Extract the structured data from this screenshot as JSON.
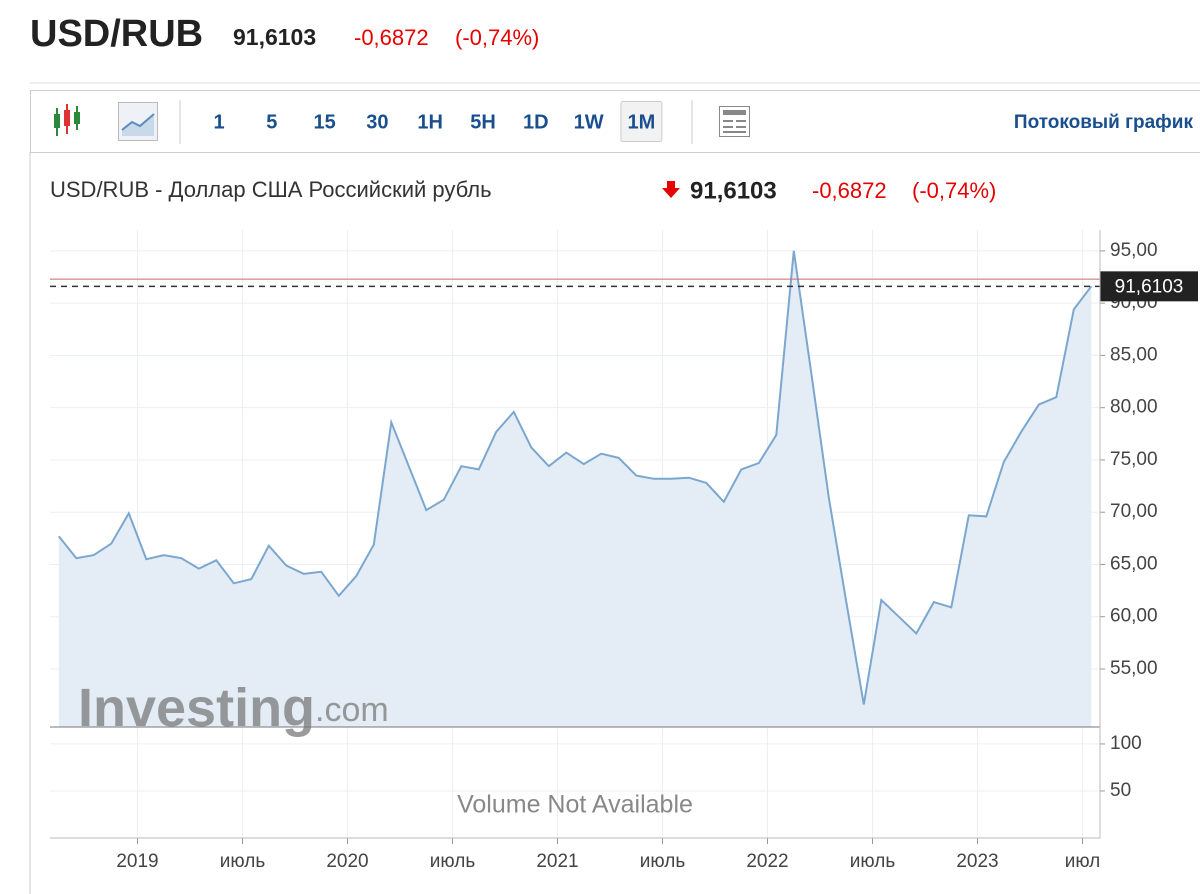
{
  "header": {
    "symbol": "USD/RUB",
    "price": "91,6103",
    "change": "-0,6872",
    "change_pct": "(-0,74%)"
  },
  "toolbar": {
    "intervals": [
      "1",
      "5",
      "15",
      "30",
      "1H",
      "5H",
      "1D",
      "1W",
      "1M"
    ],
    "selected": "1M",
    "streaming_link": "Потоковый график"
  },
  "watermark": {
    "brand": "Investing",
    "suffix": ".com"
  },
  "chart_data": {
    "type": "area",
    "title": "USD/RUB - Доллар США Российский рубль",
    "x": [
      "2018-08",
      "2018-09",
      "2018-10",
      "2018-11",
      "2018-12",
      "2019-01",
      "2019-02",
      "2019-03",
      "2019-04",
      "2019-05",
      "2019-06",
      "2019-07",
      "2019-08",
      "2019-09",
      "2019-10",
      "2019-11",
      "2019-12",
      "2020-01",
      "2020-02",
      "2020-03",
      "2020-04",
      "2020-05",
      "2020-06",
      "2020-07",
      "2020-08",
      "2020-09",
      "2020-10",
      "2020-11",
      "2020-12",
      "2021-01",
      "2021-02",
      "2021-03",
      "2021-04",
      "2021-05",
      "2021-06",
      "2021-07",
      "2021-08",
      "2021-09",
      "2021-10",
      "2021-11",
      "2021-12",
      "2022-01",
      "2022-02",
      "2022-03",
      "2022-04",
      "2022-05",
      "2022-06",
      "2022-07",
      "2022-08",
      "2022-09",
      "2022-10",
      "2022-11",
      "2022-12",
      "2023-01",
      "2023-02",
      "2023-03",
      "2023-04",
      "2023-05",
      "2023-06",
      "2023-07"
    ],
    "values": [
      67.7,
      65.6,
      65.9,
      67.0,
      69.9,
      65.5,
      65.9,
      65.6,
      64.6,
      65.4,
      63.2,
      63.6,
      66.8,
      64.9,
      64.1,
      64.3,
      62.0,
      63.9,
      66.9,
      78.6,
      74.4,
      70.2,
      71.2,
      74.4,
      74.1,
      77.7,
      79.6,
      76.2,
      74.4,
      75.7,
      74.6,
      75.6,
      75.2,
      73.5,
      73.2,
      73.2,
      73.3,
      72.8,
      71.0,
      74.1,
      74.7,
      77.4,
      95.0,
      83.3,
      71.4,
      61.4,
      51.6,
      61.6,
      60.0,
      58.4,
      61.4,
      60.9,
      69.7,
      69.6,
      74.8,
      77.7,
      80.3,
      81.0,
      89.4,
      91.6103
    ],
    "color": "#7ba7cf",
    "fill": "#e4edf6",
    "xlim": [
      "2018-08",
      "2023-08"
    ],
    "xticks": [
      {
        "value": "2019-01",
        "label": "2019"
      },
      {
        "value": "2019-07",
        "label": "июль"
      },
      {
        "value": "2020-01",
        "label": "2020"
      },
      {
        "value": "2020-07",
        "label": "июль"
      },
      {
        "value": "2021-01",
        "label": "2021"
      },
      {
        "value": "2021-07",
        "label": "июль"
      },
      {
        "value": "2022-01",
        "label": "2022"
      },
      {
        "value": "2022-07",
        "label": "июль"
      },
      {
        "value": "2023-01",
        "label": "2023"
      },
      {
        "value": "2023-07",
        "label": "июл"
      }
    ],
    "ylim": [
      49.45,
      97.0
    ],
    "yticks": [
      {
        "value": 55,
        "label": "55,00"
      },
      {
        "value": 60,
        "label": "60,00"
      },
      {
        "value": 65,
        "label": "65,00"
      },
      {
        "value": 70,
        "label": "70,00"
      },
      {
        "value": 75,
        "label": "75,00"
      },
      {
        "value": 80,
        "label": "80,00"
      },
      {
        "value": 85,
        "label": "85,00"
      },
      {
        "value": 90,
        "label": "90,00"
      },
      {
        "value": 95,
        "label": "95,00"
      }
    ],
    "grid": true,
    "last_price": {
      "value": 91.6103,
      "label": "91,6103"
    },
    "previous_close": 92.2975,
    "volume": {
      "note": "Volume Not Available",
      "ylim": [
        0,
        118
      ],
      "yticks": [
        50,
        100
      ]
    }
  }
}
